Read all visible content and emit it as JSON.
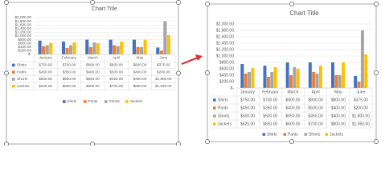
{
  "chart_data": [
    {
      "type": "bar",
      "title": "Chart Title",
      "categories": [
        "January",
        "February",
        "March",
        "April",
        "May",
        "June"
      ],
      "series": [
        {
          "name": "Shirts",
          "color": "#4472c4",
          "values": [
            750,
            700,
            800,
            800,
            800,
            375
          ],
          "value_labels": [
            "$750.00",
            "$700.00",
            "$800.00",
            "$800.00",
            "$800.00",
            "$375.00"
          ]
        },
        {
          "name": "Pants",
          "color": "#ed7d31",
          "values": [
            450,
            350,
            400,
            500,
            400,
            200
          ],
          "value_labels": [
            "$450.00",
            "$350.00",
            "$400.00",
            "$500.00",
            "$400.00",
            "$200.00"
          ]
        },
        {
          "name": "Shorts",
          "color": "#a5a5a5",
          "values": [
            500,
            500,
            650,
            450,
            400,
            1800
          ],
          "value_labels": [
            "$500.00",
            "$500.00",
            "$650.00",
            "$450.00",
            "$400.00",
            "$1,800.00"
          ]
        },
        {
          "name": "Jackets",
          "color": "#ffc000",
          "values": [
            625,
            650,
            600,
            700,
            800,
            1050
          ],
          "value_labels": [
            "$625.00",
            "$650.00",
            "$600.00",
            "$700.00",
            "$800.00",
            "$1,050.00"
          ]
        }
      ],
      "ylim": [
        0,
        2000
      ],
      "yticks": [
        {
          "value": 0,
          "label": "$-"
        },
        {
          "value": 200,
          "label": "$200.00"
        },
        {
          "value": 400,
          "label": "$400.00"
        },
        {
          "value": 600,
          "label": "$600.00"
        },
        {
          "value": 800,
          "label": "$800.00"
        },
        {
          "value": 1000,
          "label": "$1,000.00"
        },
        {
          "value": 1200,
          "label": "$1,200.00"
        },
        {
          "value": 1400,
          "label": "$1,400.00"
        },
        {
          "value": 1600,
          "label": "$1,600.00"
        },
        {
          "value": 1800,
          "label": "$1,800.00"
        },
        {
          "value": 2000,
          "label": "$2,000.00"
        }
      ],
      "grid": true,
      "data_table": true,
      "legend": "bottom"
    },
    {
      "type": "bar",
      "title": "Chart Title",
      "categories": [
        "January",
        "February",
        "March",
        "April",
        "May",
        "June"
      ],
      "series": [
        {
          "name": "Shirts",
          "color": "#4472c4",
          "values": [
            750,
            700,
            800,
            800,
            800,
            375
          ],
          "value_labels": [
            "$750.00",
            "$700.00",
            "$800.00",
            "$800.00",
            "$800.00",
            "$375.00"
          ]
        },
        {
          "name": "Pants",
          "color": "#ed7d31",
          "values": [
            450,
            350,
            400,
            500,
            400,
            200
          ],
          "value_labels": [
            "$450.00",
            "$350.00",
            "$400.00",
            "$500.00",
            "$400.00",
            "$200.00"
          ]
        },
        {
          "name": "Shorts",
          "color": "#a5a5a5",
          "values": [
            500,
            500,
            650,
            450,
            400,
            1800
          ],
          "value_labels": [
            "$500.00",
            "$500.00",
            "$650.00",
            "$450.00",
            "$400.00",
            "$1,800.00"
          ]
        },
        {
          "name": "Jackets",
          "color": "#ffc000",
          "values": [
            625,
            650,
            600,
            700,
            800,
            1050
          ],
          "value_labels": [
            "$625.00",
            "$650.00",
            "$600.00",
            "$700.00",
            "$800.00",
            "$1,050.00"
          ]
        }
      ],
      "ylim": [
        0,
        2000
      ],
      "yticks": [
        {
          "value": 0,
          "label": "$-"
        },
        {
          "value": 200,
          "label": "$200.00"
        },
        {
          "value": 400,
          "label": "$400.00"
        },
        {
          "value": 600,
          "label": "$600.00"
        },
        {
          "value": 800,
          "label": "$800.00"
        },
        {
          "value": 1000,
          "label": "$1,000.00"
        },
        {
          "value": 1200,
          "label": "$1,200.00"
        },
        {
          "value": 1400,
          "label": "$1,400.00"
        },
        {
          "value": 1600,
          "label": "$1,600.00"
        },
        {
          "value": 1800,
          "label": "$1,800.00"
        },
        {
          "value": 2000,
          "label": "$2,000.00"
        }
      ],
      "grid": true,
      "data_table": true,
      "legend": "bottom"
    }
  ]
}
